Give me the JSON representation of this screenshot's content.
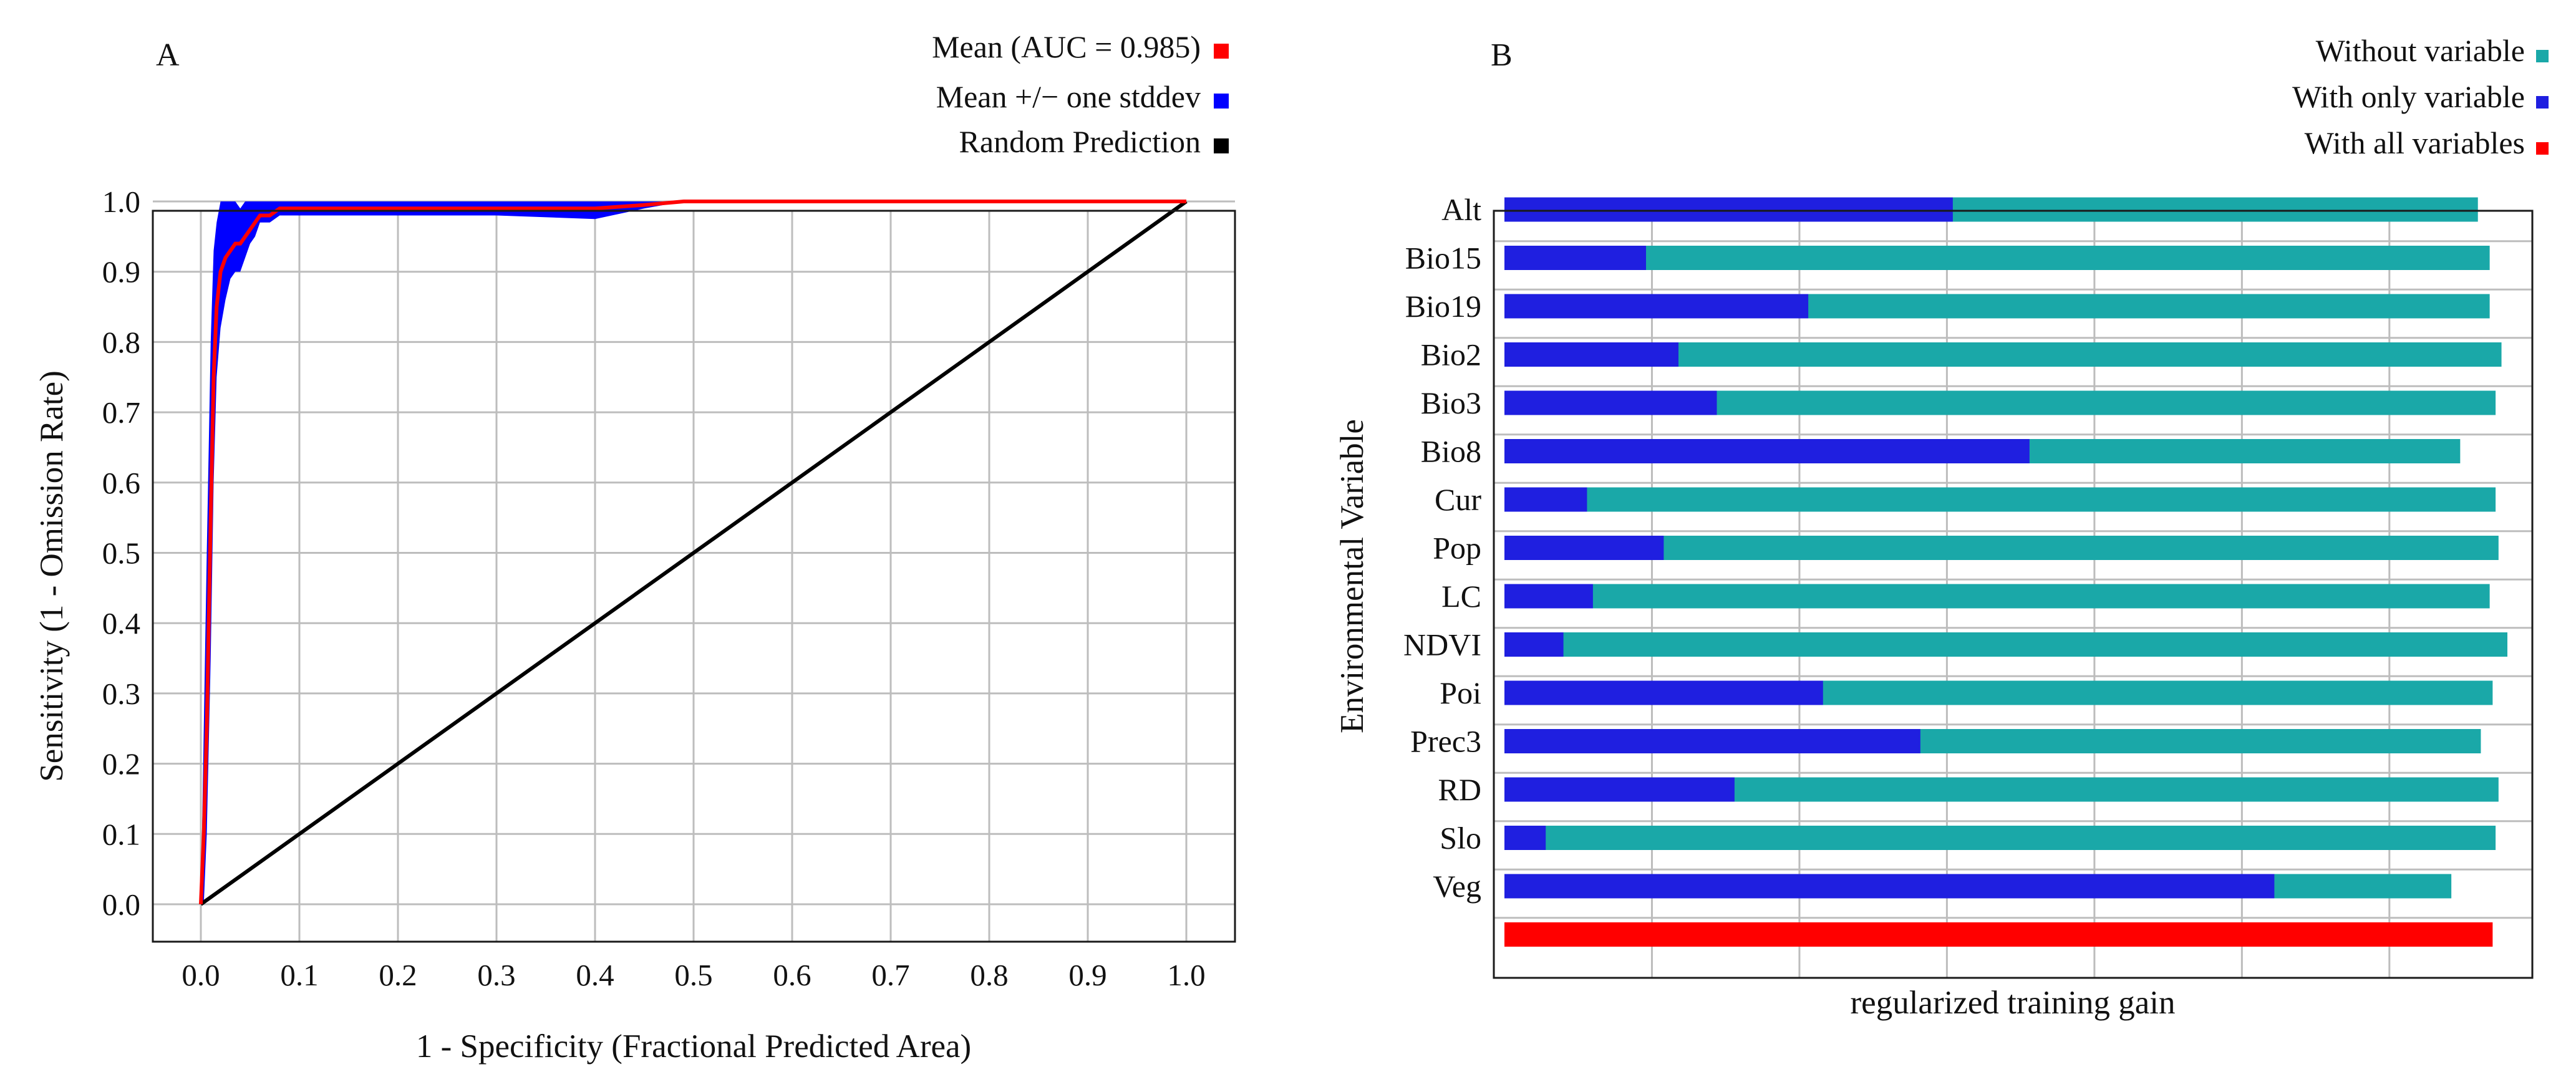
{
  "chart_data": [
    {
      "panel": "A",
      "type": "line",
      "title": "",
      "xlabel": "1 - Specificity (Fractional Predicted Area)",
      "ylabel": "Sensitivity (1 - Omission Rate)",
      "xlim": [
        0.0,
        1.0
      ],
      "ylim": [
        0.0,
        1.0
      ],
      "xticks": [
        "0.0",
        "0.1",
        "0.2",
        "0.3",
        "0.4",
        "0.5",
        "0.6",
        "0.7",
        "0.8",
        "0.9",
        "1.0"
      ],
      "yticks": [
        "0.0",
        "0.1",
        "0.2",
        "0.3",
        "0.4",
        "0.5",
        "0.6",
        "0.7",
        "0.8",
        "0.9",
        "1.0"
      ],
      "grid": true,
      "legend_position": "top-right",
      "legend": [
        {
          "label": "Mean (AUC = 0.985)",
          "color": "#ff0000"
        },
        {
          "label": "Mean +/− one stddev",
          "color": "#0000ff"
        },
        {
          "label": "Random Prediction",
          "color": "#000000"
        }
      ],
      "series": [
        {
          "name": "Mean (AUC = 0.985)",
          "color": "#ff0000",
          "x": [
            0,
            0.003,
            0.006,
            0.01,
            0.013,
            0.016,
            0.02,
            0.025,
            0.03,
            0.035,
            0.04,
            0.045,
            0.05,
            0.055,
            0.06,
            0.07,
            0.08,
            0.1,
            0.2,
            0.3,
            0.4,
            0.45,
            0.49,
            0.6,
            0.7,
            0.8,
            0.9,
            1.0
          ],
          "y": [
            0,
            0.1,
            0.25,
            0.55,
            0.75,
            0.85,
            0.9,
            0.92,
            0.93,
            0.94,
            0.94,
            0.95,
            0.96,
            0.97,
            0.98,
            0.98,
            0.99,
            0.99,
            0.99,
            0.99,
            0.99,
            0.995,
            1.0,
            1.0,
            1.0,
            1.0,
            1.0,
            1.0
          ]
        },
        {
          "name": "Mean +/− one stddev",
          "color": "#0000ff",
          "x": [
            0,
            0.003,
            0.006,
            0.01,
            0.013,
            0.016,
            0.02,
            0.025,
            0.03,
            0.035,
            0.04,
            0.045,
            0.05,
            0.055,
            0.06,
            0.07,
            0.08,
            0.1,
            0.2,
            0.3,
            0.4,
            0.45,
            0.49,
            0.6,
            0.7,
            0.8,
            0.9,
            1.0
          ],
          "upper": [
            0,
            0.25,
            0.5,
            0.8,
            0.93,
            0.97,
            1.0,
            1.0,
            1.0,
            1.0,
            0.99,
            1.0,
            1.0,
            1.0,
            1.0,
            1.0,
            1.0,
            1.0,
            1.0,
            1.0,
            1.0,
            1.0,
            1.0,
            1.0,
            1.0,
            1.0,
            1.0,
            1.0
          ],
          "lower": [
            0,
            0.0,
            0.1,
            0.35,
            0.6,
            0.75,
            0.82,
            0.86,
            0.89,
            0.9,
            0.9,
            0.92,
            0.94,
            0.95,
            0.97,
            0.97,
            0.98,
            0.98,
            0.98,
            0.98,
            0.975,
            0.99,
            1.0,
            1.0,
            1.0,
            1.0,
            1.0,
            1.0
          ]
        },
        {
          "name": "Random Prediction",
          "color": "#000000",
          "x": [
            0,
            1
          ],
          "y": [
            0,
            1
          ]
        }
      ]
    },
    {
      "panel": "B",
      "type": "bar",
      "orientation": "horizontal",
      "title": "",
      "xlabel": "regularized training gain",
      "ylabel": "Environmental Variable",
      "xlim": [
        0,
        3.4
      ],
      "grid": true,
      "legend_position": "top-right",
      "legend": [
        {
          "label": "Without variable",
          "color": "#1aa8a8"
        },
        {
          "label": "With only variable",
          "color": "#1f1fe0"
        },
        {
          "label": "With all variables",
          "color": "#ff0000"
        }
      ],
      "categories": [
        "Alt",
        "Bio15",
        "Bio19",
        "Bio2",
        "Bio3",
        "Bio8",
        "Cur",
        "Pop",
        "LC",
        "NDVI",
        "Poi",
        "Prec3",
        "RD",
        "Slo",
        "Veg"
      ],
      "series": [
        {
          "name": "Without variable",
          "color": "#1aa8a8",
          "values": [
            3.3,
            3.34,
            3.34,
            3.38,
            3.36,
            3.24,
            3.36,
            3.37,
            3.34,
            3.4,
            3.35,
            3.31,
            3.37,
            3.36,
            3.21
          ]
        },
        {
          "name": "With only variable",
          "color": "#1f1fe0",
          "values": [
            1.52,
            0.48,
            1.03,
            0.59,
            0.72,
            1.78,
            0.28,
            0.54,
            0.3,
            0.2,
            1.08,
            1.41,
            0.78,
            0.14,
            2.61
          ]
        }
      ],
      "with_all_variables": {
        "name": "With all variables",
        "color": "#ff0000",
        "value": 3.35
      }
    }
  ]
}
